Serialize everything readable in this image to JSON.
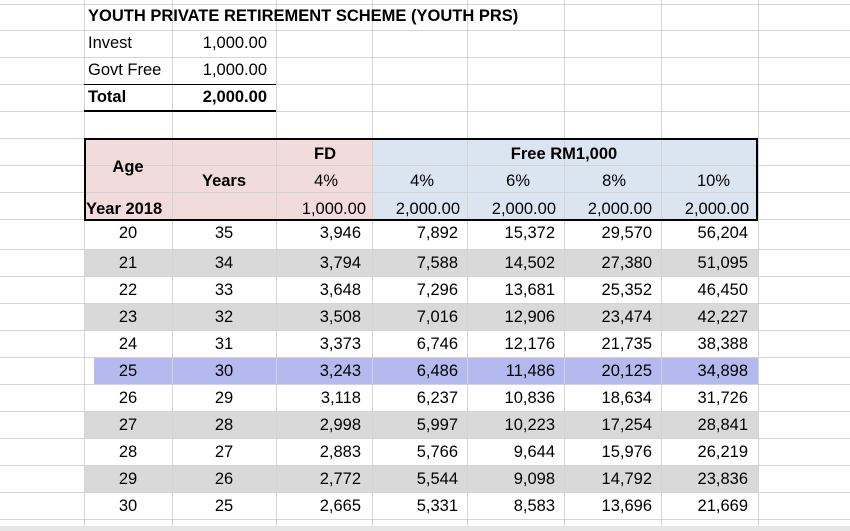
{
  "title": "YOUTH PRIVATE RETIREMENT SCHEME (YOUTH PRS)",
  "summary": [
    {
      "label": "Invest",
      "value": "1,000.00"
    },
    {
      "label": "Govt Free",
      "value": "1,000.00"
    },
    {
      "label": "Total",
      "value": "2,000.00"
    }
  ],
  "header": {
    "age": "Age",
    "year_label": "Year 2018",
    "years": "Years",
    "fd": "FD",
    "fd_rate": "4%",
    "fd_amount": "1,000.00",
    "free_group": "Free RM1,000",
    "free_rates": [
      "4%",
      "6%",
      "8%",
      "10%"
    ],
    "free_amounts": [
      "2,000.00",
      "2,000.00",
      "2,000.00",
      "2,000.00"
    ]
  },
  "rows": [
    [
      "20",
      "35",
      "3,946",
      "7,892",
      "15,372",
      "29,570",
      "56,204"
    ],
    [
      "21",
      "34",
      "3,794",
      "7,588",
      "14,502",
      "27,380",
      "51,095"
    ],
    [
      "22",
      "33",
      "3,648",
      "7,296",
      "13,681",
      "25,352",
      "46,450"
    ],
    [
      "23",
      "32",
      "3,508",
      "7,016",
      "12,906",
      "23,474",
      "42,227"
    ],
    [
      "24",
      "31",
      "3,373",
      "6,746",
      "12,176",
      "21,735",
      "38,388"
    ],
    [
      "25",
      "30",
      "3,243",
      "6,486",
      "11,486",
      "20,125",
      "34,898"
    ],
    [
      "26",
      "29",
      "3,118",
      "6,237",
      "10,836",
      "18,634",
      "31,726"
    ],
    [
      "27",
      "28",
      "2,998",
      "5,997",
      "10,223",
      "17,254",
      "28,841"
    ],
    [
      "28",
      "27",
      "2,883",
      "5,766",
      "9,644",
      "15,976",
      "26,219"
    ],
    [
      "29",
      "26",
      "2,772",
      "5,544",
      "9,098",
      "14,792",
      "23,836"
    ],
    [
      "30",
      "25",
      "2,665",
      "5,331",
      "8,583",
      "13,696",
      "21,669"
    ]
  ],
  "highlight_row": 5,
  "colors": {
    "fd_header_fill": "#f2dcdb",
    "free_header_fill": "#dbe5f1",
    "stripe_fill": "#d9d9d9",
    "highlight_fill": "#b4b9ee",
    "gridline": "#d4d4d4"
  }
}
